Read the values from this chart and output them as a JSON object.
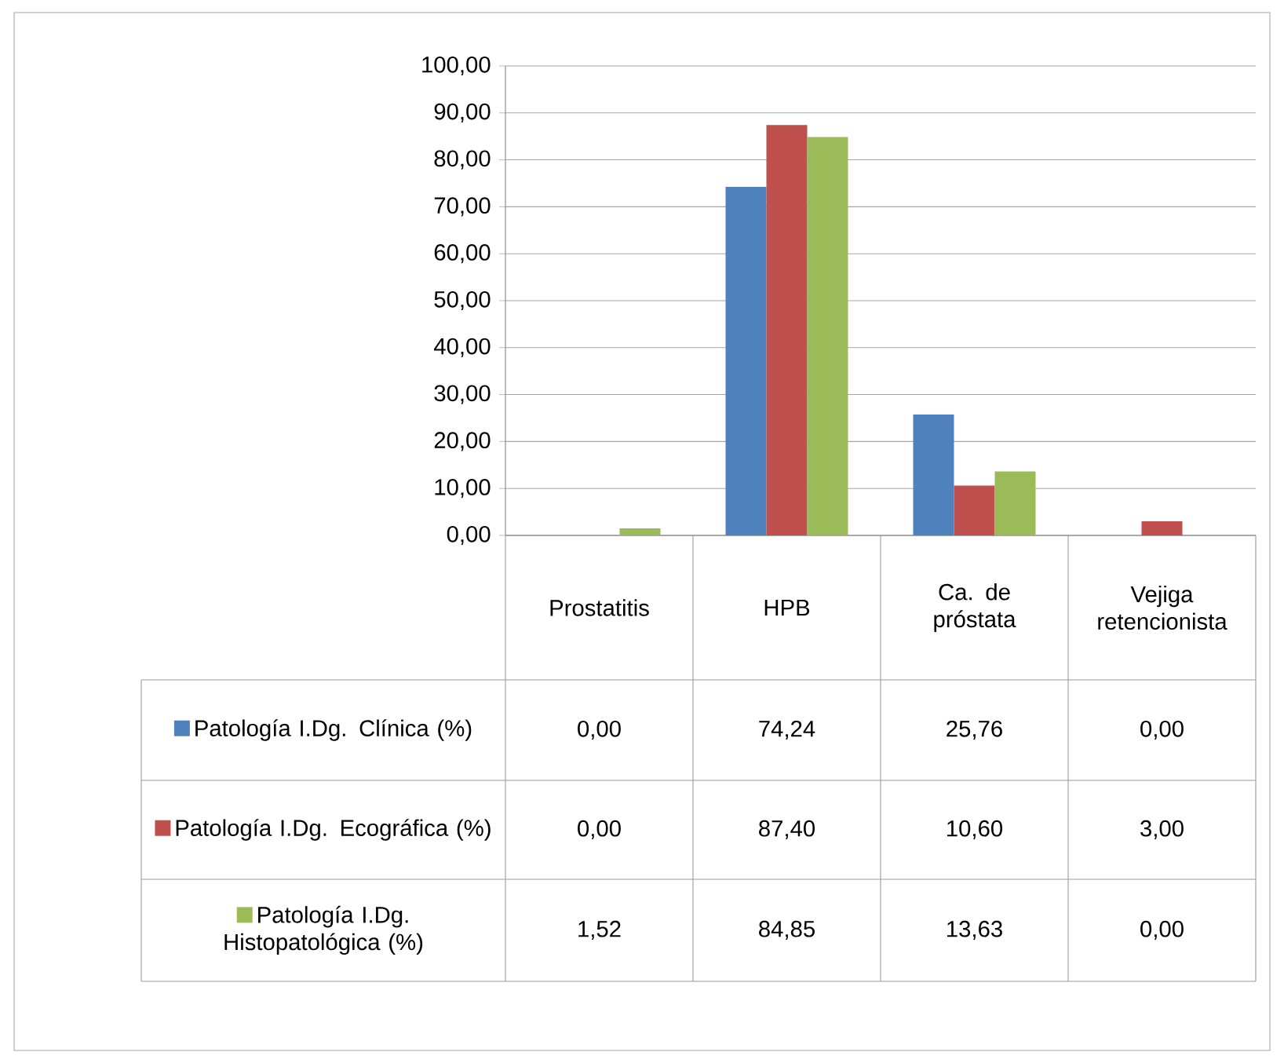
{
  "chart_data": {
    "type": "bar",
    "categories": [
      "Prostatitis",
      "HPB",
      "Ca. de próstata",
      "Vejiga retencionista"
    ],
    "series": [
      {
        "name": "Patología I.Dg. Clínica (%)",
        "color": "#4f81bd",
        "values": [
          0.0,
          74.24,
          25.76,
          0.0
        ],
        "value_labels": [
          "0,00",
          "74,24",
          "25,76",
          "0,00"
        ]
      },
      {
        "name": "Patología I.Dg. Ecográfica (%)",
        "color": "#c0504d",
        "values": [
          0.0,
          87.4,
          10.6,
          3.0
        ],
        "value_labels": [
          "0,00",
          "87,40",
          "10,60",
          "3,00"
        ]
      },
      {
        "name": "Patología I.Dg. Histopatológica (%)",
        "color": "#9bbb59",
        "values": [
          1.52,
          84.85,
          13.63,
          0.0
        ],
        "value_labels": [
          "1,52",
          "84,85",
          "13,63",
          "0,00"
        ]
      }
    ],
    "ylim": [
      0,
      100
    ],
    "yticks": [
      {
        "value": 0,
        "label": "0,00"
      },
      {
        "value": 10,
        "label": "10,00"
      },
      {
        "value": 20,
        "label": "20,00"
      },
      {
        "value": 30,
        "label": "30,00"
      },
      {
        "value": 40,
        "label": "40,00"
      },
      {
        "value": 50,
        "label": "50,00"
      },
      {
        "value": 60,
        "label": "60,00"
      },
      {
        "value": 70,
        "label": "70,00"
      },
      {
        "value": 80,
        "label": "80,00"
      },
      {
        "value": 90,
        "label": "90,00"
      },
      {
        "value": 100,
        "label": "100,00"
      }
    ],
    "grid": "y",
    "legend": "bottom"
  }
}
